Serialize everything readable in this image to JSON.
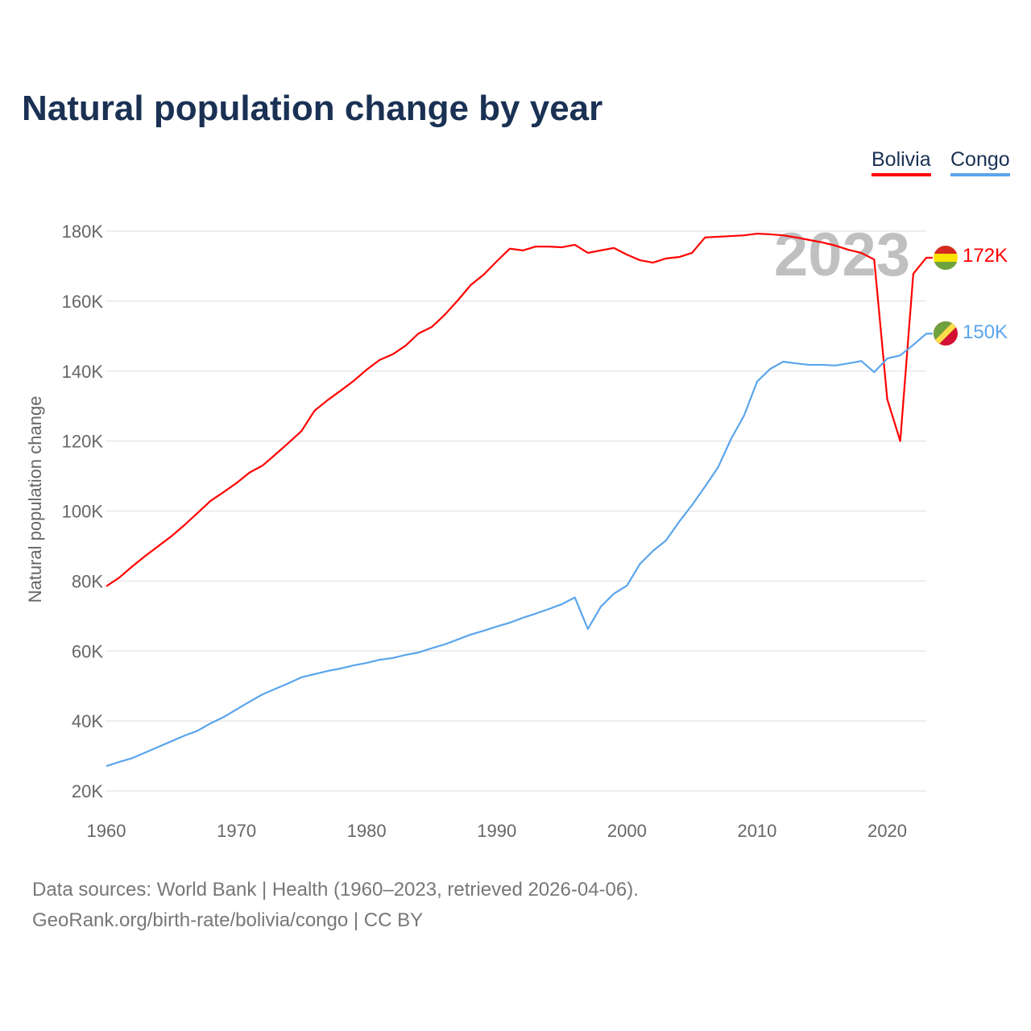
{
  "title": "Natural population change by year",
  "footer": {
    "line1": "Data sources: World Bank | Health (1960–2023, retrieved 2026-04-06).",
    "line2": "GeoRank.org/birth-rate/bolivia/congo | CC BY"
  },
  "chart_data": {
    "type": "line",
    "title": "Natural population change by year",
    "xlabel": "",
    "ylabel": "Natural population change",
    "year_watermark": "2023",
    "xlim": [
      1960,
      2023
    ],
    "ylim": [
      20000,
      180000
    ],
    "grid": true,
    "legend_placement": "top-right",
    "x_ticks": [
      "1960",
      "1970",
      "1980",
      "1990",
      "2000",
      "2010",
      "2020"
    ],
    "y_ticks": [
      {
        "value": 20000,
        "label": "20K"
      },
      {
        "value": 40000,
        "label": "40K"
      },
      {
        "value": 60000,
        "label": "60K"
      },
      {
        "value": 80000,
        "label": "80K"
      },
      {
        "value": 100000,
        "label": "100K"
      },
      {
        "value": 120000,
        "label": "120K"
      },
      {
        "value": 140000,
        "label": "140K"
      },
      {
        "value": 160000,
        "label": "160K"
      },
      {
        "value": 180000,
        "label": "180K"
      }
    ],
    "x_start": 1960,
    "series": [
      {
        "name": "Bolivia",
        "color": "#ff0000",
        "end_label": "172K",
        "flag": "bolivia-flag",
        "values": [
          78500,
          81000,
          84200,
          87200,
          90000,
          92800,
          96000,
          99400,
          102900,
          105400,
          108000,
          111000,
          113000,
          116200,
          119500,
          122900,
          128700,
          131700,
          134400,
          137200,
          140400,
          143200,
          144800,
          147300,
          150800,
          152600,
          156100,
          160200,
          164600,
          167600,
          171400,
          175000,
          174500,
          175600,
          175600,
          175400,
          176100,
          173800,
          174500,
          175200,
          173300,
          171700,
          171000,
          172200,
          172600,
          173800,
          178200,
          178400,
          178600,
          178800,
          179300,
          179100,
          178800,
          178200,
          177500,
          176800,
          175900,
          174700,
          173800,
          171900,
          132000,
          120000,
          167800,
          172400
        ]
      },
      {
        "name": "Congo",
        "color": "#5aa5ec",
        "end_label": "150K",
        "flag": "congo-flag",
        "values": [
          27100,
          28300,
          29400,
          31000,
          32600,
          34200,
          35800,
          37200,
          39300,
          41100,
          43300,
          45500,
          47600,
          49200,
          50800,
          52500,
          53400,
          54300,
          55000,
          55900,
          56600,
          57500,
          58000,
          58900,
          59600,
          60800,
          61900,
          63300,
          64700,
          65800,
          67000,
          68100,
          69500,
          70700,
          72000,
          73400,
          75300,
          66300,
          72700,
          76400,
          78700,
          84900,
          88600,
          91600,
          96900,
          101700,
          107000,
          112500,
          120600,
          127300,
          137000,
          140600,
          142700,
          142200,
          141800,
          141800,
          141600,
          142200,
          142900,
          139700,
          143600,
          144500,
          147500,
          150700
        ]
      }
    ]
  }
}
